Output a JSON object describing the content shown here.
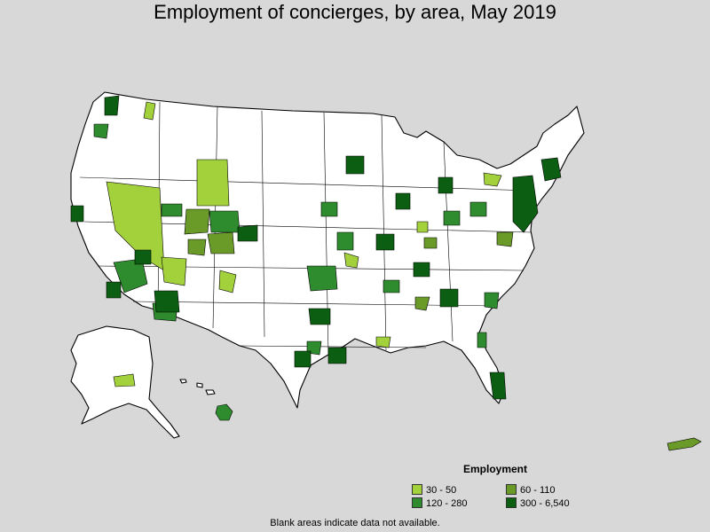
{
  "title": "Employment of concierges, by area, May 2019",
  "legend": {
    "title": "Employment",
    "items": [
      {
        "label": "30 - 50",
        "color": "#a3d13c"
      },
      {
        "label": "60 - 110",
        "color": "#6a9a27"
      },
      {
        "label": "120 - 280",
        "color": "#2e8b2e"
      },
      {
        "label": "300 - 6,540",
        "color": "#0b5e12"
      }
    ]
  },
  "footnote": "Blank areas indicate data not available.",
  "colors": {
    "background": "#d8d8d8",
    "no_data": "#ffffff",
    "border": "#000000"
  }
}
